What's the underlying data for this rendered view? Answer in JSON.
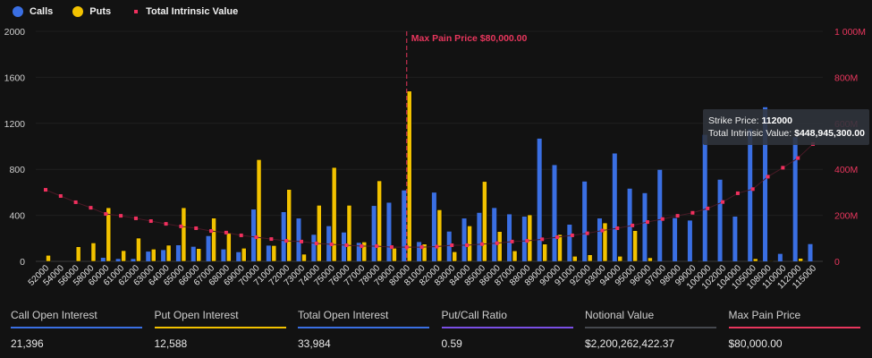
{
  "colors": {
    "calls": "#3a6fe3",
    "puts": "#f2c200",
    "intrinsic": "#f0305e",
    "max_pain": "#e8365d",
    "background": "#121212"
  },
  "legend": {
    "calls": "Calls",
    "puts": "Puts",
    "intrinsic": "Total Intrinsic Value"
  },
  "max_pain_label": "Max Pain Price $80,000.00",
  "tooltip": {
    "strike_label": "Strike Price:",
    "strike_value": "112000",
    "value_label": "Total Intrinsic Value:",
    "value_value": "$448,945,300.00"
  },
  "chart_data": {
    "type": "bar",
    "categories": [
      "52000",
      "54000",
      "56000",
      "58000",
      "60000",
      "61000",
      "62000",
      "63000",
      "64000",
      "65000",
      "66000",
      "67000",
      "68000",
      "69000",
      "70000",
      "71000",
      "72000",
      "73000",
      "74000",
      "75000",
      "76000",
      "77000",
      "78000",
      "79000",
      "80000",
      "81000",
      "82000",
      "83000",
      "84000",
      "85000",
      "86000",
      "87000",
      "88000",
      "89000",
      "90000",
      "91000",
      "92000",
      "93000",
      "94000",
      "95000",
      "96000",
      "97000",
      "98000",
      "99000",
      "100000",
      "102000",
      "104000",
      "105000",
      "108000",
      "110000",
      "112000",
      "115000"
    ],
    "series": [
      {
        "name": "Calls",
        "axis": "left",
        "values": [
          0,
          0,
          0,
          0,
          31,
          21,
          21,
          85,
          98,
          140,
          127,
          220,
          104,
          80,
          451,
          137,
          428,
          373,
          231,
          306,
          251,
          161,
          482,
          510,
          617,
          168,
          598,
          259,
          373,
          422,
          464,
          409,
          389,
          1067,
          837,
          319,
          694,
          373,
          938,
          632,
          593,
          796,
          376,
          355,
          1100,
          710,
          389,
          1150,
          1340,
          65,
          1080,
          150
        ]
      },
      {
        "name": "Puts",
        "axis": "left",
        "values": [
          52,
          0,
          127,
          160,
          466,
          93,
          202,
          106,
          140,
          466,
          111,
          376,
          249,
          114,
          884,
          137,
          625,
          62,
          487,
          816,
          487,
          168,
          700,
          114,
          1480,
          150,
          448,
          83,
          308,
          694,
          259,
          91,
          404,
          150,
          233,
          44,
          57,
          334,
          44,
          267,
          31,
          0,
          0,
          5,
          0,
          0,
          0,
          23,
          5,
          0,
          26,
          0
        ]
      },
      {
        "name": "Total Intrinsic Value",
        "axis": "right",
        "unit": "M",
        "type": "scatter",
        "values": [
          311,
          284,
          257,
          233,
          206,
          198,
          187,
          175,
          163,
          152,
          144,
          132,
          125,
          113,
          105,
          97,
          89,
          86,
          78,
          74,
          70,
          66,
          66,
          62,
          62,
          62,
          64,
          70,
          70,
          75,
          79,
          86,
          89,
          96,
          105,
          113,
          122,
          134,
          144,
          156,
          171,
          184,
          198,
          211,
          230,
          258,
          296,
          314,
          368,
          407,
          449,
          510
        ]
      }
    ],
    "y_left": {
      "ticks": [
        "0",
        "400",
        "800",
        "1200",
        "1600",
        "2000"
      ],
      "ylim": [
        0,
        2000
      ]
    },
    "y_right": {
      "ticks": [
        "0",
        "200M",
        "400M",
        "600M",
        "800M",
        "1 000M"
      ],
      "ylim": [
        0,
        1000
      ]
    },
    "max_pain_strike": "80000",
    "grid": true,
    "legend_position": "top-left"
  },
  "footer": [
    {
      "label": "Call Open Interest",
      "value": "21,396",
      "color": "#3a6fe3"
    },
    {
      "label": "Put Open Interest",
      "value": "12,588",
      "color": "#f2c200"
    },
    {
      "label": "Total Open Interest",
      "value": "33,984",
      "color": "#3a6fe3"
    },
    {
      "label": "Put/Call Ratio",
      "value": "0.59",
      "color": "#7a4fe6"
    },
    {
      "label": "Notional Value",
      "value": "$2,200,262,422.37",
      "color": "#45484e"
    },
    {
      "label": "Max Pain Price",
      "value": "$80,000.00",
      "color": "#e8365d"
    }
  ]
}
